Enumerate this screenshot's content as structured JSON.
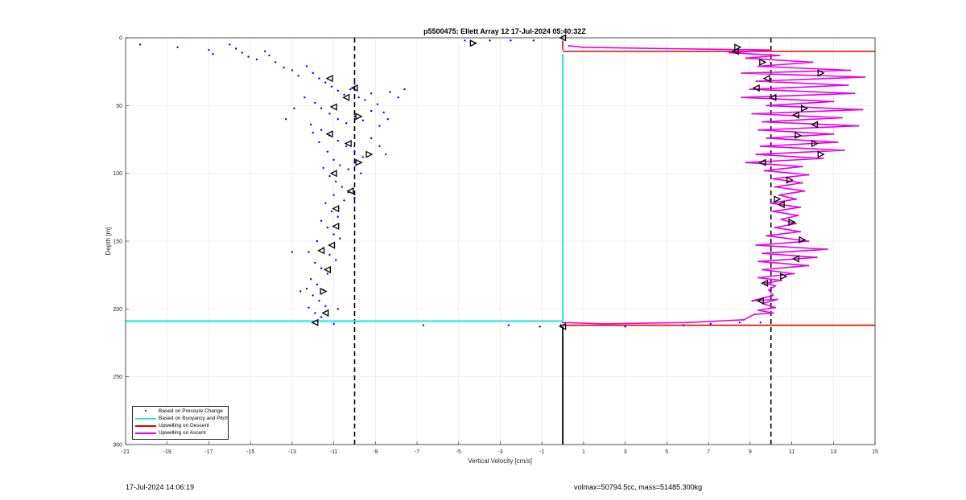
{
  "chart_data": {
    "type": "scatter",
    "title": "p5500475: Ellett Array 12 17-Jul-2024 05:40:32Z",
    "xlabel": "Vertical Velocity [cm/s]",
    "ylabel": "Depth [m]",
    "xlim": [
      -21,
      15
    ],
    "ylim": [
      0,
      300
    ],
    "y_reversed": true,
    "grid": true,
    "legend_position": "bottom-left",
    "xticks": [
      "-21",
      "-19",
      "-17",
      "-15",
      "-13",
      "-11",
      "-9",
      "-7",
      "-5",
      "-3",
      "-1",
      "1",
      "3",
      "5",
      "7",
      "9",
      "11",
      "13",
      "15"
    ],
    "xtick_values": [
      -21,
      -19,
      -17,
      -15,
      -13,
      -11,
      -9,
      -7,
      -5,
      -3,
      -1,
      1,
      3,
      5,
      7,
      9,
      11,
      13,
      15
    ],
    "yticks": [
      "0",
      "50",
      "100",
      "150",
      "200",
      "250",
      "300"
    ],
    "ytick_values": [
      0,
      50,
      100,
      150,
      200,
      250,
      300
    ],
    "reference_lines": [
      {
        "style": "dashed",
        "color": "#000000",
        "x": -10
      },
      {
        "style": "dashed",
        "color": "#000000",
        "x": 10
      },
      {
        "style": "solid",
        "color": "#000000",
        "x": 0
      }
    ],
    "series": [
      {
        "name": "Based on Pressure Change",
        "color": "#0000ff",
        "points": [
          [
            -20.3,
            5
          ],
          [
            -18.5,
            7
          ],
          [
            -17,
            9
          ],
          [
            -16.8,
            12
          ],
          [
            -16,
            5
          ],
          [
            -15.7,
            8
          ],
          [
            -15.4,
            11
          ],
          [
            -15.1,
            14
          ],
          [
            -14.7,
            16
          ],
          [
            -14.3,
            10
          ],
          [
            -14.1,
            13
          ],
          [
            -13.8,
            18
          ],
          [
            -13.4,
            22
          ],
          [
            -13,
            24
          ],
          [
            -12.7,
            28
          ],
          [
            -12.3,
            21
          ],
          [
            -12,
            26
          ],
          [
            -11.7,
            30
          ],
          [
            -11.4,
            33
          ],
          [
            -11.1,
            36
          ],
          [
            -10.8,
            39
          ],
          [
            -10.5,
            42
          ],
          [
            -10.2,
            38
          ],
          [
            -10,
            34
          ],
          [
            -9.8,
            44
          ],
          [
            -9.5,
            46
          ],
          [
            -9.2,
            41
          ],
          [
            -8.9,
            49
          ],
          [
            -8.6,
            55
          ],
          [
            -8.3,
            40
          ],
          [
            -7.9,
            44
          ],
          [
            -7.6,
            38
          ],
          [
            -12.4,
            44
          ],
          [
            -11.9,
            48
          ],
          [
            -11.6,
            52
          ],
          [
            -11.2,
            56
          ],
          [
            -10.8,
            60
          ],
          [
            -10.4,
            63
          ],
          [
            -10,
            58
          ],
          [
            -9.6,
            61
          ],
          [
            -9.2,
            54
          ],
          [
            -8.8,
            65
          ],
          [
            -8.4,
            60
          ],
          [
            -12.9,
            52
          ],
          [
            -13.3,
            60
          ],
          [
            -12.1,
            64
          ],
          [
            -11.6,
            68
          ],
          [
            -11.2,
            72
          ],
          [
            -10.8,
            76
          ],
          [
            -10.4,
            80
          ],
          [
            -10,
            84
          ],
          [
            -9.6,
            88
          ],
          [
            -9.2,
            74
          ],
          [
            -8.8,
            80
          ],
          [
            -8.5,
            86
          ],
          [
            -12,
            70
          ],
          [
            -11.7,
            77
          ],
          [
            -11.3,
            84
          ],
          [
            -11,
            90
          ],
          [
            -10.7,
            94
          ],
          [
            -10.3,
            97
          ],
          [
            -10,
            92
          ],
          [
            -9.7,
            100
          ],
          [
            -11.5,
            96
          ],
          [
            -11.2,
            102
          ],
          [
            -10.9,
            106
          ],
          [
            -10.6,
            110
          ],
          [
            -10.3,
            114
          ],
          [
            -10,
            118
          ],
          [
            -11,
            116
          ],
          [
            -11.4,
            122
          ],
          [
            -11.1,
            128
          ],
          [
            -10.8,
            132
          ],
          [
            -10.5,
            120
          ],
          [
            -11.6,
            135
          ],
          [
            -11.3,
            140
          ],
          [
            -11,
            145
          ],
          [
            -10.7,
            148
          ],
          [
            -11.8,
            150
          ],
          [
            -11.5,
            155
          ],
          [
            -11.2,
            160
          ],
          [
            -10.9,
            164
          ],
          [
            -12.2,
            158
          ],
          [
            -13,
            158
          ],
          [
            -11.9,
            166
          ],
          [
            -11.6,
            170
          ],
          [
            -11.3,
            174
          ],
          [
            -12.1,
            178
          ],
          [
            -11.8,
            182
          ],
          [
            -11.5,
            186
          ],
          [
            -12.3,
            185
          ],
          [
            -12.6,
            187
          ],
          [
            -12,
            190
          ],
          [
            -11.7,
            194
          ],
          [
            -11.4,
            198
          ],
          [
            -12.2,
            199
          ],
          [
            -11.9,
            203
          ],
          [
            -11.6,
            206
          ],
          [
            -10.8,
            200
          ],
          [
            -11,
            211
          ],
          [
            -4.7,
            2
          ],
          [
            -4.2,
            4
          ],
          [
            -3.5,
            2
          ],
          [
            -2.5,
            2
          ],
          [
            -1.4,
            2
          ],
          [
            -6.7,
            212
          ],
          [
            -2.6,
            212
          ],
          [
            -1.1,
            213
          ],
          [
            -0.1,
            212
          ],
          [
            3,
            213
          ],
          [
            5.8,
            212
          ],
          [
            7.1,
            211
          ],
          [
            8.5,
            210
          ],
          [
            9.5,
            210
          ]
        ]
      },
      {
        "name": "Based on Buoyancy and Pitch",
        "color": "#33e6e6",
        "segments": [
          [
            [
              -21,
              209
            ],
            [
              0,
              209
            ]
          ],
          [
            [
              0,
              12
            ],
            [
              0,
              209
            ]
          ]
        ]
      },
      {
        "name": "Upwelling on Descent",
        "color": "#e60000",
        "segments": [
          [
            [
              0,
              10
            ],
            [
              15,
              10
            ]
          ],
          [
            [
              0,
              212
            ],
            [
              15,
              212
            ]
          ],
          [
            [
              0,
              2
            ],
            [
              0,
              9
            ]
          ]
        ]
      },
      {
        "name": "Upwelling on Ascent",
        "color": "#e600e6",
        "points": [
          [
            0,
            210
          ],
          [
            2,
            211
          ],
          [
            6,
            210
          ],
          [
            8.7,
            208
          ],
          [
            9.2,
            204
          ],
          [
            10.1,
            203
          ],
          [
            9.4,
            201
          ],
          [
            10.2,
            199
          ],
          [
            9.6,
            196
          ],
          [
            10.3,
            193
          ],
          [
            9.1,
            194
          ],
          [
            10.1,
            190
          ],
          [
            9.9,
            186
          ],
          [
            10.2,
            183
          ],
          [
            9.7,
            181
          ],
          [
            10.5,
            179
          ],
          [
            9.4,
            177
          ],
          [
            11.1,
            174
          ],
          [
            9.6,
            171
          ],
          [
            11.8,
            168
          ],
          [
            9.4,
            165
          ],
          [
            12.2,
            162
          ],
          [
            9.6,
            159
          ],
          [
            12.7,
            156
          ],
          [
            9.3,
            153
          ],
          [
            11.8,
            150
          ],
          [
            9.8,
            146
          ],
          [
            11.4,
            143
          ],
          [
            10.2,
            140
          ],
          [
            11.2,
            137
          ],
          [
            10.5,
            134
          ],
          [
            11.3,
            131
          ],
          [
            10.1,
            128
          ],
          [
            11.4,
            125
          ],
          [
            10,
            122
          ],
          [
            11.2,
            119
          ],
          [
            10.4,
            116
          ],
          [
            11.6,
            113
          ],
          [
            10.2,
            110
          ],
          [
            11.5,
            107
          ],
          [
            10.1,
            104
          ],
          [
            11.8,
            101
          ],
          [
            9.7,
            98
          ],
          [
            11.5,
            95
          ],
          [
            8.8,
            92
          ],
          [
            12.5,
            89
          ],
          [
            9.3,
            86
          ],
          [
            13.5,
            83
          ],
          [
            9.5,
            80
          ],
          [
            13.2,
            77
          ],
          [
            9.8,
            74
          ],
          [
            13,
            71
          ],
          [
            9.4,
            68
          ],
          [
            14.2,
            65
          ],
          [
            9.6,
            62
          ],
          [
            13.4,
            59
          ],
          [
            9.1,
            56
          ],
          [
            14.4,
            53
          ],
          [
            9.8,
            50
          ],
          [
            13,
            47
          ],
          [
            8.6,
            44
          ],
          [
            14,
            41
          ],
          [
            9,
            38
          ],
          [
            13.7,
            35
          ],
          [
            9.3,
            32
          ],
          [
            14.5,
            29
          ],
          [
            8.6,
            26
          ],
          [
            13.8,
            24
          ],
          [
            9.4,
            21
          ],
          [
            12,
            18
          ],
          [
            8.8,
            15
          ],
          [
            10.4,
            13
          ],
          [
            8,
            11
          ],
          [
            10,
            9
          ],
          [
            5,
            8
          ],
          [
            1,
            7
          ],
          [
            0.3,
            6
          ]
        ]
      }
    ],
    "direction_markers": [
      [
        -11.2,
        30,
        "left"
      ],
      [
        -10,
        37,
        "left"
      ],
      [
        -10.4,
        44,
        "left"
      ],
      [
        -11,
        51,
        "left"
      ],
      [
        -9.8,
        58,
        "right"
      ],
      [
        -11.2,
        71,
        "left"
      ],
      [
        -10.3,
        78,
        "left"
      ],
      [
        -9.3,
        86,
        "right"
      ],
      [
        -9.8,
        92,
        "right"
      ],
      [
        -11,
        100,
        "left"
      ],
      [
        -10.2,
        113,
        "left"
      ],
      [
        -10.9,
        126,
        "left"
      ],
      [
        -10.9,
        139,
        "left"
      ],
      [
        -11.1,
        153,
        "left"
      ],
      [
        -11.6,
        157,
        "left"
      ],
      [
        -11.3,
        171,
        "left"
      ],
      [
        -11.5,
        187,
        "right"
      ],
      [
        -11.4,
        203,
        "left"
      ],
      [
        -11.9,
        210,
        "left"
      ],
      [
        -4.3,
        4,
        "right"
      ],
      [
        0,
        0,
        "left"
      ],
      [
        0,
        213,
        "left"
      ],
      [
        8.4,
        7,
        "right"
      ],
      [
        8.3,
        10,
        "left"
      ],
      [
        9.6,
        18,
        "right"
      ],
      [
        9.8,
        30,
        "left"
      ],
      [
        12.4,
        26,
        "right"
      ],
      [
        9.3,
        37,
        "left"
      ],
      [
        10.1,
        44,
        "left"
      ],
      [
        11.6,
        52,
        "right"
      ],
      [
        11.2,
        57,
        "left"
      ],
      [
        12.1,
        64,
        "left"
      ],
      [
        11.3,
        72,
        "right"
      ],
      [
        12.1,
        78,
        "right"
      ],
      [
        12.4,
        86,
        "right"
      ],
      [
        9.6,
        92,
        "left"
      ],
      [
        10.9,
        105,
        "right"
      ],
      [
        10.3,
        119,
        "right"
      ],
      [
        10.5,
        123,
        "left"
      ],
      [
        11,
        136,
        "right"
      ],
      [
        11.5,
        149,
        "right"
      ],
      [
        11.2,
        163,
        "left"
      ],
      [
        10.6,
        176,
        "right"
      ],
      [
        9.7,
        181,
        "left"
      ],
      [
        9.5,
        194,
        "left"
      ]
    ]
  },
  "footer": {
    "timestamp": "17-Jul-2024 14:06:19",
    "info": "volmax=50794.5cc, mass=51485.300kg"
  },
  "legend": {
    "items": [
      "Based on Pressure Change",
      "Based on Buoyancy and Pitch",
      "Upwelling on Descent",
      "Upwelling on Ascent"
    ]
  },
  "colors": {
    "pressure": "#0000ff",
    "buoyancy": "#33e6e6",
    "descent": "#e60000",
    "ascent": "#e600e6",
    "axis": "#262626",
    "grid": "#e6e6e6"
  }
}
